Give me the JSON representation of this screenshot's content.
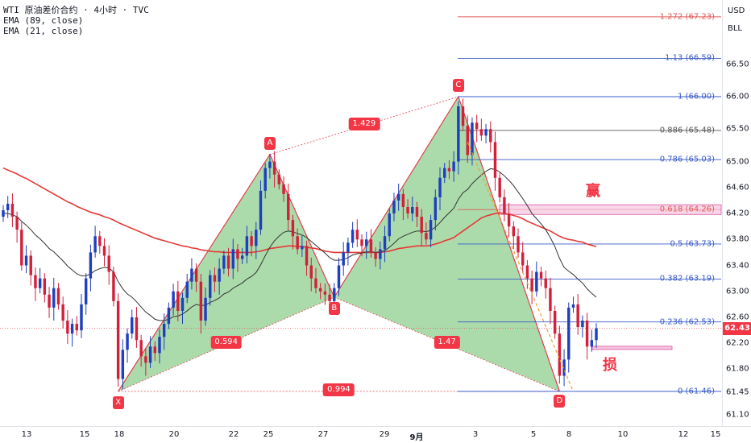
{
  "legend": {
    "title": "WTI 原油差价合约 · 4小时 · TVC",
    "ema_long": "EMA (89, close)",
    "ema_short": "EMA (21, close)"
  },
  "scale": {
    "currency": "USD",
    "unit": "BLL",
    "price_ticks": [
      "66.50",
      "66.00",
      "65.50",
      "65.00",
      "64.60",
      "64.20",
      "63.80",
      "63.40",
      "63.00",
      "62.60",
      "62.20",
      "61.80",
      "61.45",
      "61.10"
    ],
    "current_price": "62.43"
  },
  "time_axis": {
    "labels": [
      "13",
      "15",
      "18",
      "20",
      "22",
      "25",
      "27",
      "29",
      "9月",
      "3",
      "5",
      "8",
      "10",
      "12",
      "15"
    ]
  },
  "colors": {
    "up": "#1e3fbf",
    "down": "#d3203a",
    "ema_long": "#e53935",
    "ema_short": "#333333",
    "pattern_fill": "#8fcf8f",
    "fib_red": "#e05a5a",
    "fib_blue": "#3a5bc7",
    "fib_grey": "#555555"
  },
  "fib_levels": [
    {
      "label": "1.272 (67.23)",
      "price": 67.23,
      "color": "red"
    },
    {
      "label": "1.13 (66.59)",
      "price": 66.59,
      "color": "blue"
    },
    {
      "label": "1 (66.00)",
      "price": 66.0,
      "color": "blue"
    },
    {
      "label": "0.886 (65.48)",
      "price": 65.48,
      "color": "grey"
    },
    {
      "label": "0.786 (65.03)",
      "price": 65.03,
      "color": "blue"
    },
    {
      "label": "0.618 (64.26)",
      "price": 64.26,
      "color": "red"
    },
    {
      "label": "0.5 (63.73)",
      "price": 63.73,
      "color": "blue"
    },
    {
      "label": "0.382 (63.19)",
      "price": 63.19,
      "color": "blue"
    },
    {
      "label": "0.236 (62.53)",
      "price": 62.53,
      "color": "blue"
    },
    {
      "label": "0 (61.46)",
      "price": 61.46,
      "color": "blue"
    }
  ],
  "pattern": {
    "points": [
      {
        "name": "X",
        "date_index": 25,
        "price": 61.46
      },
      {
        "name": "A",
        "date_index": 58,
        "price": 65.11
      },
      {
        "name": "B",
        "date_index": 72,
        "price": 62.91
      },
      {
        "name": "C",
        "date_index": 99,
        "price": 66.0
      },
      {
        "name": "D",
        "date_index": 121,
        "price": 61.46
      }
    ],
    "ratios": [
      "1.429",
      "0.594",
      "1.47",
      "0.994"
    ]
  },
  "annotations": {
    "win": "赢",
    "loss": "损"
  },
  "chart_data": {
    "type": "candlestick",
    "symbol": "WTI 原油差价合约",
    "timeframe": "4小时",
    "source": "TVC",
    "ylim": [
      61.0,
      67.4
    ],
    "x_labels": [
      "13",
      "15",
      "18",
      "20",
      "22",
      "25",
      "27",
      "29",
      "9月",
      "3",
      "5",
      "8",
      "10",
      "12",
      "15"
    ],
    "close": [
      64.25,
      64.35,
      64.15,
      63.95,
      63.4,
      63.55,
      63.25,
      63.05,
      63.2,
      62.95,
      62.75,
      63.05,
      62.8,
      62.55,
      62.35,
      62.5,
      62.4,
      62.8,
      63.2,
      63.6,
      63.85,
      63.7,
      63.55,
      63.3,
      62.85,
      61.65,
      62.1,
      62.35,
      62.6,
      62.25,
      62.0,
      61.9,
      62.15,
      62.05,
      62.3,
      62.5,
      62.75,
      63.0,
      62.7,
      62.9,
      63.15,
      63.35,
      63.15,
      62.55,
      62.9,
      63.25,
      63.15,
      63.35,
      63.55,
      63.35,
      63.65,
      63.5,
      63.55,
      63.85,
      63.7,
      63.95,
      64.55,
      64.9,
      65.0,
      64.8,
      64.65,
      64.5,
      64.1,
      63.85,
      63.65,
      63.7,
      63.4,
      63.2,
      63.05,
      63.0,
      62.95,
      62.85,
      63.05,
      63.4,
      63.6,
      63.75,
      63.95,
      63.8,
      63.7,
      63.8,
      63.6,
      63.5,
      63.65,
      63.85,
      64.2,
      64.4,
      64.5,
      64.3,
      64.2,
      64.3,
      64.15,
      63.9,
      63.8,
      64.1,
      64.45,
      64.75,
      64.9,
      64.85,
      65.0,
      65.85,
      65.55,
      65.1,
      65.6,
      65.5,
      65.4,
      65.5,
      65.3,
      64.75,
      64.45,
      64.2,
      64.0,
      63.85,
      63.6,
      63.4,
      63.2,
      63.0,
      63.3,
      63.2,
      63.05,
      62.7,
      62.35,
      61.7,
      61.95,
      62.75,
      62.8,
      62.45,
      62.55,
      62.15,
      62.25,
      62.43
    ],
    "ema_long": [
      64.9,
      64.87,
      64.84,
      64.81,
      64.77,
      64.74,
      64.7,
      64.66,
      64.62,
      64.58,
      64.54,
      64.5,
      64.46,
      64.42,
      64.38,
      64.35,
      64.31,
      64.28,
      64.25,
      64.22,
      64.2,
      64.18,
      64.15,
      64.13,
      64.1,
      64.06,
      64.03,
      64.0,
      63.97,
      63.94,
      63.91,
      63.88,
      63.85,
      63.82,
      63.8,
      63.78,
      63.76,
      63.74,
      63.72,
      63.7,
      63.69,
      63.67,
      63.66,
      63.64,
      63.63,
      63.62,
      63.61,
      63.61,
      63.6,
      63.6,
      63.6,
      63.6,
      63.6,
      63.6,
      63.6,
      63.61,
      63.62,
      63.64,
      63.66,
      63.67,
      63.68,
      63.69,
      63.7,
      63.7,
      63.69,
      63.69,
      63.68,
      63.67,
      63.66,
      63.64,
      63.62,
      63.61,
      63.6,
      63.6,
      63.6,
      63.6,
      63.6,
      63.6,
      63.6,
      63.6,
      63.6,
      63.6,
      63.6,
      63.61,
      63.62,
      63.64,
      63.66,
      63.67,
      63.68,
      63.69,
      63.7,
      63.7,
      63.7,
      63.71,
      63.73,
      63.75,
      63.78,
      63.8,
      63.83,
      63.88,
      63.93,
      63.98,
      64.03,
      64.08,
      64.13,
      64.16,
      64.18,
      64.2,
      64.21,
      64.2,
      64.19,
      64.17,
      64.15,
      64.12,
      64.08,
      64.05,
      64.02,
      63.99,
      63.96,
      63.93,
      63.89,
      63.85,
      63.82,
      63.8,
      63.79,
      63.77,
      63.76,
      63.73,
      63.71,
      63.69
    ],
    "ema_short": [
      64.2,
      64.2,
      64.18,
      64.15,
      64.08,
      64.02,
      63.95,
      63.87,
      63.81,
      63.74,
      63.66,
      63.61,
      63.54,
      63.47,
      63.39,
      63.33,
      63.27,
      63.24,
      63.24,
      63.27,
      63.32,
      63.35,
      63.37,
      63.36,
      63.3,
      63.15,
      63.04,
      62.96,
      62.91,
      62.84,
      62.76,
      62.68,
      62.63,
      62.57,
      62.55,
      62.55,
      62.57,
      62.61,
      62.62,
      62.65,
      62.7,
      62.76,
      62.8,
      62.78,
      62.79,
      62.83,
      62.86,
      62.9,
      62.96,
      62.99,
      63.05,
      63.09,
      63.13,
      63.19,
      63.23,
      63.29,
      63.41,
      63.55,
      63.68,
      63.78,
      63.85,
      63.91,
      63.93,
      63.92,
      63.89,
      63.87,
      63.83,
      63.77,
      63.71,
      63.65,
      63.59,
      63.52,
      63.48,
      63.48,
      63.49,
      63.52,
      63.56,
      63.58,
      63.59,
      63.61,
      63.61,
      63.6,
      63.61,
      63.63,
      63.68,
      63.74,
      63.81,
      63.85,
      63.88,
      63.91,
      63.93,
      63.93,
      63.92,
      63.94,
      63.99,
      64.06,
      64.14,
      64.21,
      64.28,
      64.42,
      64.52,
      64.57,
      64.66,
      64.73,
      64.79,
      64.85,
      64.89,
      64.88,
      64.84,
      64.78,
      64.71,
      64.63,
      64.53,
      64.43,
      64.32,
      64.2,
      64.12,
      64.04,
      63.95,
      63.83,
      63.69,
      63.51,
      63.37,
      63.31,
      63.26,
      63.19,
      63.13,
      63.04,
      62.97,
      62.91
    ],
    "series": [
      {
        "name": "EMA (89, close)"
      },
      {
        "name": "EMA (21, close)"
      }
    ]
  }
}
